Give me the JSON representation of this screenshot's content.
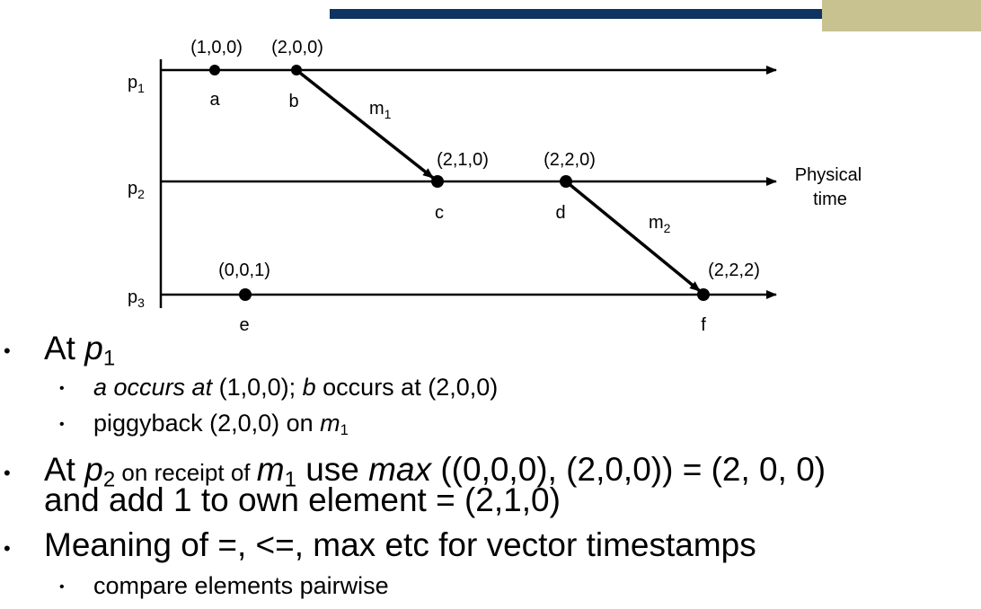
{
  "colors": {
    "header_bar": "#0f3461",
    "accent_block": "#c7c28f",
    "ink": "#000000"
  },
  "diagram": {
    "processes": [
      {
        "id": "p1",
        "name": "p",
        "sub": "1"
      },
      {
        "id": "p2",
        "name": "p",
        "sub": "2"
      },
      {
        "id": "p3",
        "name": "p",
        "sub": "3"
      }
    ],
    "time_label_line1": "Physical",
    "time_label_line2": "time",
    "events": [
      {
        "id": "a",
        "label": "a",
        "timestamp": "(1,0,0)",
        "process": "p1"
      },
      {
        "id": "b",
        "label": "b",
        "timestamp": "(2,0,0)",
        "process": "p1"
      },
      {
        "id": "c",
        "label": "c",
        "timestamp": "(2,1,0)",
        "process": "p2"
      },
      {
        "id": "d",
        "label": "d",
        "timestamp": "(2,2,0)",
        "process": "p2"
      },
      {
        "id": "e",
        "label": "e",
        "timestamp": "(0,0,1)",
        "process": "p3"
      },
      {
        "id": "f",
        "label": "f",
        "timestamp": "(2,2,2)",
        "process": "p3"
      }
    ],
    "messages": [
      {
        "id": "m1",
        "name": "m",
        "sub": "1",
        "from": "b",
        "to": "c"
      },
      {
        "id": "m2",
        "name": "m",
        "sub": "2",
        "from": "d",
        "to": "f"
      }
    ]
  },
  "bullets": {
    "b1": {
      "pre": "At ",
      "var": "p",
      "sub": "1"
    },
    "b1_1": {
      "a": "a",
      "occurs_at": " occurs at",
      "ts1": " (1,0,0); ",
      "b": "b",
      "rest": " occurs at (2,0,0)"
    },
    "b1_2": {
      "text": "piggyback  (2,0,0) on ",
      "var": "m",
      "sub": "1"
    },
    "b2": {
      "pre": "At ",
      "var": "p",
      "sub": "2",
      "on_receipt": " on receipt of ",
      "msg": "m",
      "msg_sub": "1",
      "use": " use ",
      "max": "max",
      "rest": " ((0,0,0), (2,0,0)) = (2, 0, 0)",
      "line2": "and add 1 to own element = (2,1,0)"
    },
    "b3": {
      "text": "Meaning of =, <=, max etc for vector timestamps"
    },
    "b3_1": {
      "text": "compare elements pairwise"
    }
  }
}
